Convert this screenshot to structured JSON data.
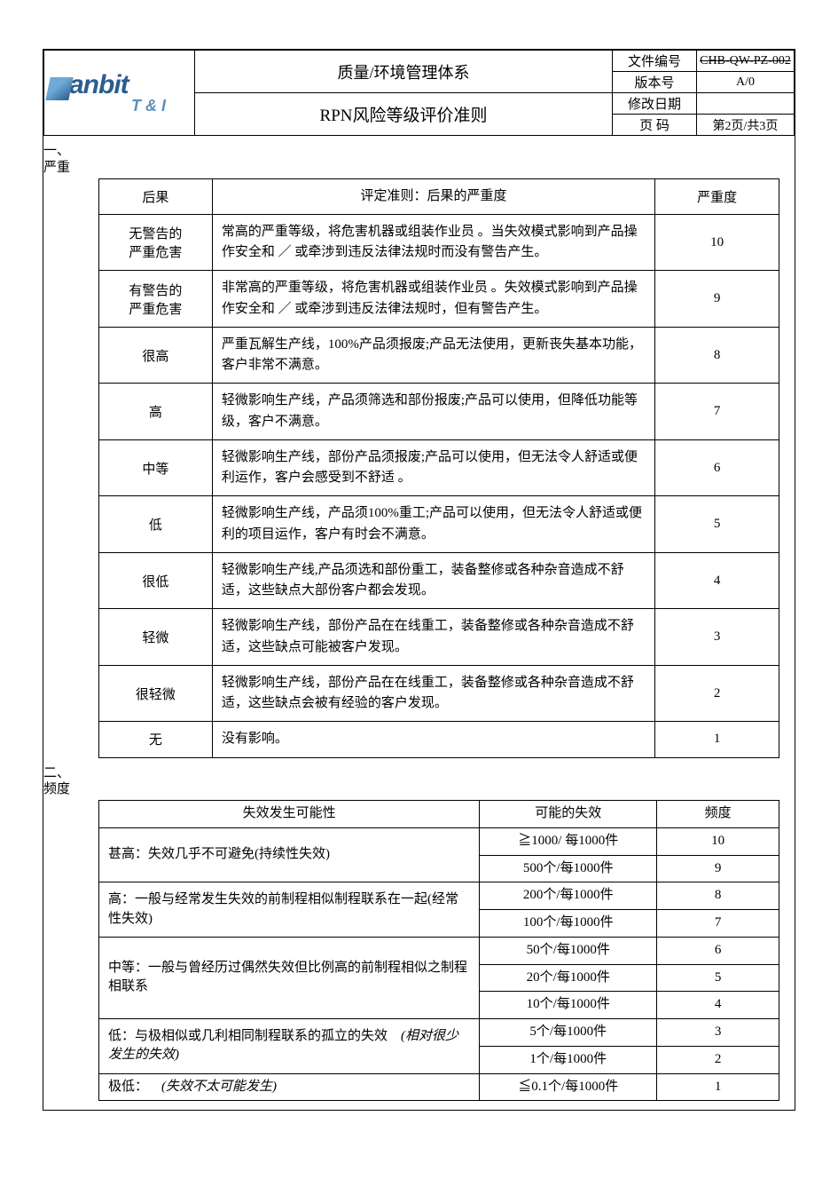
{
  "header": {
    "logo_text": "anbit",
    "logo_sub": "T & I",
    "line1_title": "质量/环境管理体系",
    "line2_title": "RPN风险等级评价准则",
    "meta": [
      {
        "k": "文件编号",
        "v": "CHB-QW-PZ-002",
        "strike": true
      },
      {
        "k": "版本号",
        "v": "A/0"
      },
      {
        "k": "修改日期",
        "v": ""
      },
      {
        "k": "页  码",
        "v": "第2页/共3页"
      }
    ]
  },
  "section1": {
    "num": "一、",
    "name": "严重",
    "columns": [
      "后果",
      "评定准则：后果的严重度",
      "严重度"
    ],
    "rows": [
      {
        "name": "无警告的\n严重危害",
        "desc": "常高的严重等级，将危害机器或组装作业员 。当失效模式影响到产品操作安全和 ／ 或牵涉到违反法律法规时而没有警告产生。",
        "rank": "10",
        "tall": true
      },
      {
        "name": "有警告的\n严重危害",
        "desc": "非常高的严重等级，将危害机器或组装作业员 。失效模式影响到产品操作安全和 ／ 或牵涉到违反法律法规时，但有警告产生。",
        "rank": "9",
        "tall": true
      },
      {
        "name": "很高",
        "desc": "严重瓦解生产线，100%产品须报废;产品无法使用，更新丧失基本功能，客户非常不满意。",
        "rank": "8"
      },
      {
        "name": "高",
        "desc": "轻微影响生产线，产品须筛选和部份报废;产品可以使用，但降低功能等级，客户不满意。",
        "rank": "7"
      },
      {
        "name": "中等",
        "desc": "轻微影响生产线，部份产品须报废;产品可以使用，但无法令人舒适或便利运作，客户会感受到不舒适 。",
        "rank": "6"
      },
      {
        "name": "低",
        "desc": "轻微影响生产线，产品须100%重工;产品可以使用，但无法令人舒适或便利的项目运作，客户有时会不满意。",
        "rank": "5"
      },
      {
        "name": "很低",
        "desc": "轻微影响生产线,产品须选和部份重工，装备整修或各种杂音造成不舒适，这些缺点大部份客户都会发现。",
        "rank": "4"
      },
      {
        "name": "轻微",
        "desc": "轻微影响生产线，部份产品在在线重工，装备整修或各种杂音造成不舒适，这些缺点可能被客户发现。",
        "rank": "3"
      },
      {
        "name": "很轻微",
        "desc": "轻微影响生产线，部份产品在在线重工，装备整修或各种杂音造成不舒适，这些缺点会被有经验的客户发现。",
        "rank": "2"
      },
      {
        "name": "无",
        "desc": "没有影响。",
        "rank": "1"
      }
    ]
  },
  "section2": {
    "num": "二、",
    "name": "频度",
    "columns": [
      "失效发生可能性",
      "可能的失效",
      "频度"
    ],
    "groups": [
      {
        "prob": "甚高：失效几乎不可避免(持续性失效)",
        "rows": [
          {
            "rate": "≧1000/ 每1000件",
            "rank": "10"
          },
          {
            "rate": "500个/每1000件",
            "rank": "9"
          }
        ]
      },
      {
        "prob": "高：一般与经常发生失效的前制程相似制程联系在一起(经常性失效)",
        "rows": [
          {
            "rate": "200个/每1000件",
            "rank": "8"
          },
          {
            "rate": "100个/每1000件",
            "rank": "7"
          }
        ]
      },
      {
        "prob": "中等：一般与曾经历过偶然失效但比例高的前制程相似之制程相联系",
        "rows": [
          {
            "rate": "50个/每1000件",
            "rank": "6"
          },
          {
            "rate": "20个/每1000件",
            "rank": "5"
          },
          {
            "rate": "10个/每1000件",
            "rank": "4"
          }
        ]
      },
      {
        "prob_html": "低：与极相似或几利相同制程联系的孤立的失效 <span class=\"it\">(相对很少发生的失效)</span>",
        "rows": [
          {
            "rate": "5个/每1000件",
            "rank": "3"
          },
          {
            "rate": "1个/每1000件",
            "rank": "2"
          }
        ]
      },
      {
        "prob_html": "极低： <span class=\"it\">(失效不太可能发生)</span>",
        "rows": [
          {
            "rate": "≦0.1个/每1000件",
            "rank": "1"
          }
        ]
      }
    ]
  },
  "colors": {
    "border": "#000000",
    "bg": "#ffffff",
    "logo_start": "#6fa9d6",
    "logo_end": "#2a5d8f"
  }
}
